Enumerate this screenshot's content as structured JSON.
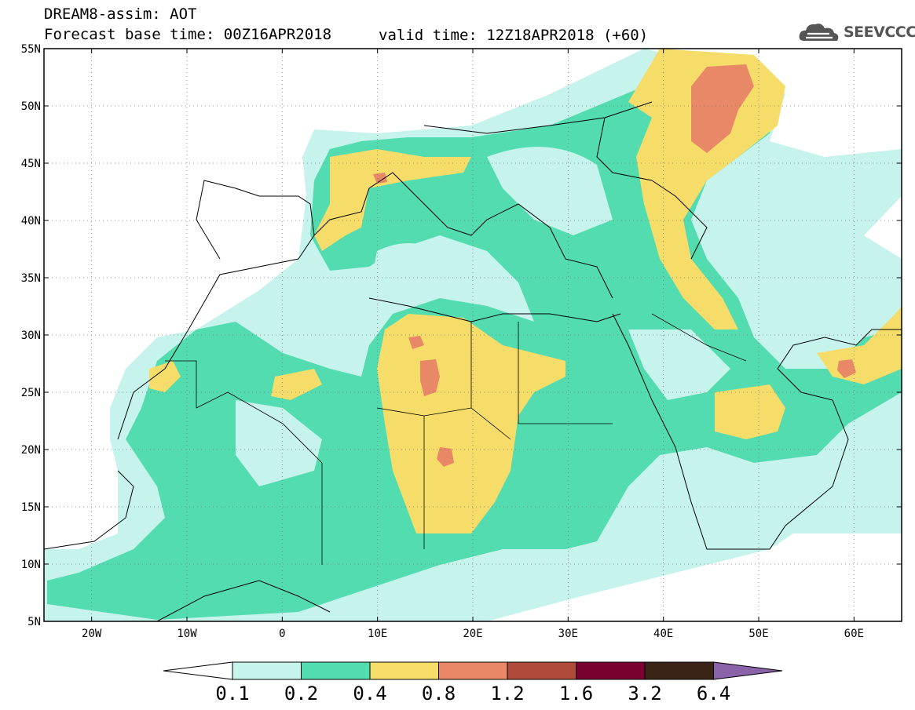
{
  "header": {
    "line1": "DREAM8-assim: AOT",
    "line2": "Forecast base time: 00Z16APR2018",
    "valid": "valid time: 12Z18APR2018 (+60)",
    "logo_text": "SEEVCCC",
    "logo_icon": "cloud-logo-icon"
  },
  "map": {
    "lon_range": [
      -25,
      65
    ],
    "lat_range": [
      5,
      55
    ],
    "lat_ticks": [
      "5N",
      "10N",
      "15N",
      "20N",
      "25N",
      "30N",
      "35N",
      "40N",
      "45N",
      "50N",
      "55N"
    ],
    "lon_ticks": [
      "20W",
      "10W",
      "0",
      "10E",
      "20E",
      "30E",
      "40E",
      "50E",
      "60E"
    ],
    "grid": "dotted"
  },
  "colorbar": {
    "labels": [
      "0.1",
      "0.2",
      "0.4",
      "0.8",
      "1.2",
      "1.6",
      "3.2",
      "6.4"
    ],
    "colors": [
      "#c6f3ec",
      "#53dcaf",
      "#f6dd6a",
      "#e88866",
      "#b04a3a",
      "#7a0030",
      "#3a2418",
      "#8a63a8"
    ],
    "under_color": "#ffffff"
  }
}
